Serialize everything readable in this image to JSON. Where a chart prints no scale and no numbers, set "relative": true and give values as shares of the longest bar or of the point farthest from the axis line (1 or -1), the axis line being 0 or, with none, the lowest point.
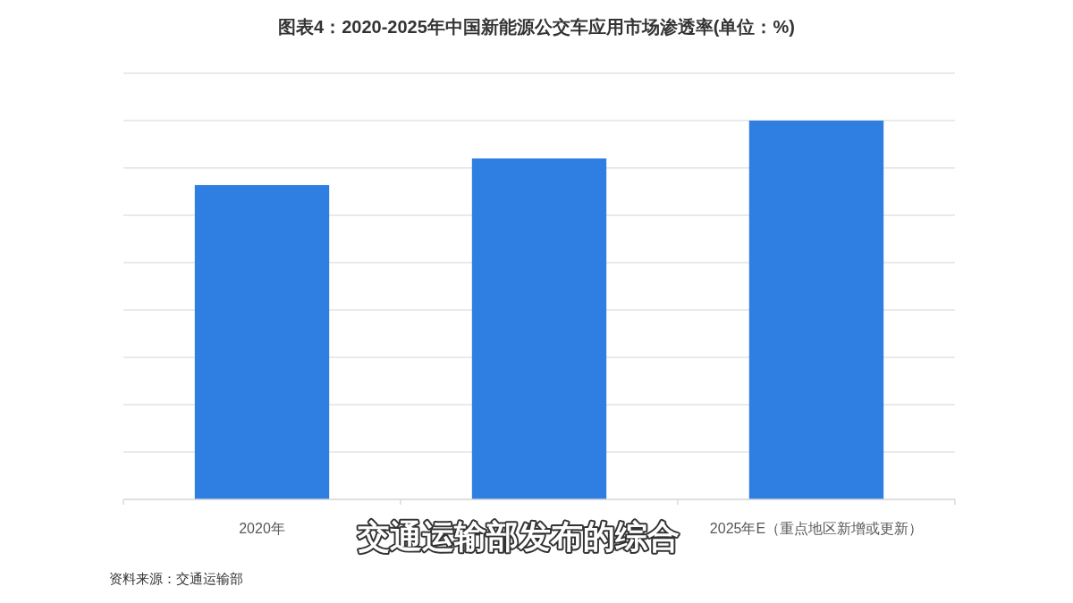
{
  "chart_data": {
    "type": "bar",
    "title": "图表4：2020-2025年中国新能源公交车应用市场渗透率(单位：%)",
    "categories": [
      "2020年",
      null,
      "2025年E（重点地区新增或更新）"
    ],
    "values": [
      0.83,
      0.9,
      1
    ],
    "relative": true,
    "color": "#2f7ee2",
    "grid": "y",
    "annotations": [
      "交通运输部发布的综合",
      "资料来源：交通运输部"
    ]
  }
}
